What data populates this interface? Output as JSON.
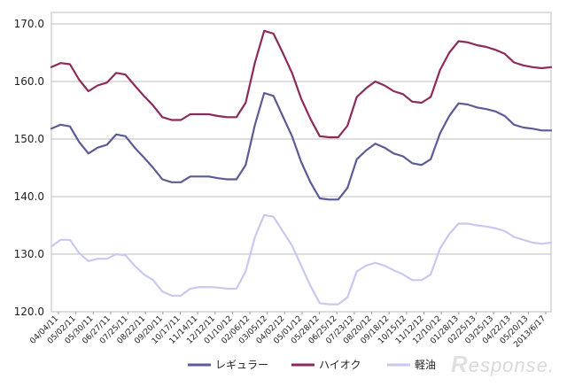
{
  "chart_data": {
    "type": "line",
    "ylim": [
      120,
      172
    ],
    "yticks": [
      "120.0",
      "130.0",
      "140.0",
      "150.0",
      "160.0",
      "170.0"
    ],
    "grid": true,
    "legend_position": "bottom",
    "x_tick_labels": [
      "04/04/11",
      "05/02/11",
      "05/30/11",
      "06/27/11",
      "07/25/11",
      "08/22/11",
      "09/20/11",
      "10/17/11",
      "11/14/11",
      "12/12/11",
      "01/10/12",
      "02/06/12",
      "03/05/12",
      "04/02/12",
      "05/01/12",
      "05/28/12",
      "06/25/12",
      "07/23/12",
      "08/20/12",
      "09/18/12",
      "10/15/12",
      "11/12/12",
      "12/10/12",
      "01/28/13",
      "02/25/13",
      "03/25/13",
      "04/22/13",
      "05/20/13",
      "2013/6/17"
    ],
    "series": [
      {
        "name": "レギュラー",
        "color": "#5b5b96",
        "values": [
          151.8,
          152.5,
          152.2,
          149.5,
          147.5,
          148.5,
          149.0,
          150.8,
          150.5,
          148.5,
          146.8,
          145.0,
          143.0,
          142.5,
          142.5,
          143.5,
          143.5,
          143.5,
          143.2,
          143.0,
          143.0,
          145.5,
          152.5,
          158.0,
          157.5,
          154.0,
          150.5,
          146.0,
          142.5,
          139.7,
          139.5,
          139.5,
          141.5,
          146.5,
          148.0,
          149.2,
          148.5,
          147.5,
          147.0,
          145.8,
          145.5,
          146.5,
          151.0,
          154.0,
          156.2,
          156.0,
          155.5,
          155.2,
          154.8,
          154.0,
          152.5,
          152.0,
          151.8,
          151.5,
          151.5
        ]
      },
      {
        "name": "ハイオク",
        "color": "#8c2a5b",
        "values": [
          162.5,
          163.2,
          163.0,
          160.3,
          158.3,
          159.3,
          159.8,
          161.5,
          161.2,
          159.3,
          157.5,
          155.8,
          153.8,
          153.3,
          153.3,
          154.3,
          154.3,
          154.3,
          154.0,
          153.8,
          153.8,
          156.3,
          163.3,
          168.8,
          168.3,
          165.0,
          161.5,
          157.0,
          153.5,
          150.5,
          150.3,
          150.3,
          152.3,
          157.3,
          158.8,
          160.0,
          159.3,
          158.3,
          157.8,
          156.5,
          156.3,
          157.3,
          162.0,
          165.0,
          167.0,
          166.8,
          166.3,
          166.0,
          165.5,
          164.8,
          163.3,
          162.8,
          162.5,
          162.3,
          162.5
        ]
      },
      {
        "name": "軽油",
        "color": "#c8c8f0",
        "values": [
          131.3,
          132.5,
          132.5,
          130.2,
          128.8,
          129.2,
          129.2,
          130.0,
          129.8,
          128.0,
          126.5,
          125.5,
          123.5,
          122.8,
          122.8,
          124.0,
          124.3,
          124.3,
          124.2,
          124.0,
          124.0,
          127.0,
          133.0,
          136.8,
          136.5,
          134.0,
          131.5,
          128.0,
          124.5,
          121.5,
          121.3,
          121.3,
          122.5,
          127.0,
          128.0,
          128.5,
          128.0,
          127.2,
          126.5,
          125.5,
          125.5,
          126.5,
          131.0,
          133.5,
          135.3,
          135.3,
          135.0,
          134.8,
          134.5,
          134.0,
          133.0,
          132.5,
          132.0,
          131.8,
          132.0
        ]
      }
    ]
  },
  "watermark": "Response."
}
